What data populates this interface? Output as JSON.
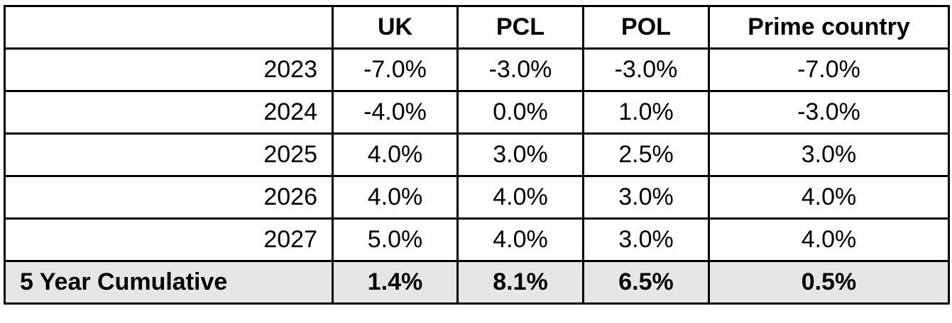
{
  "table": {
    "columns": [
      "UK",
      "PCL",
      "POL",
      "Prime country"
    ],
    "rows": [
      [
        "2023",
        "-7.0%",
        "-3.0%",
        "-3.0%",
        "-7.0%"
      ],
      [
        "2024",
        "-4.0%",
        "0.0%",
        "1.0%",
        "-3.0%"
      ],
      [
        "2025",
        "4.0%",
        "3.0%",
        "2.5%",
        "3.0%"
      ],
      [
        "2026",
        "4.0%",
        "4.0%",
        "3.0%",
        "4.0%"
      ],
      [
        "2027",
        "5.0%",
        "4.0%",
        "3.0%",
        "4.0%"
      ]
    ],
    "total": [
      "5 Year Cumulative",
      "1.4%",
      "8.1%",
      "6.5%",
      "0.5%"
    ]
  }
}
